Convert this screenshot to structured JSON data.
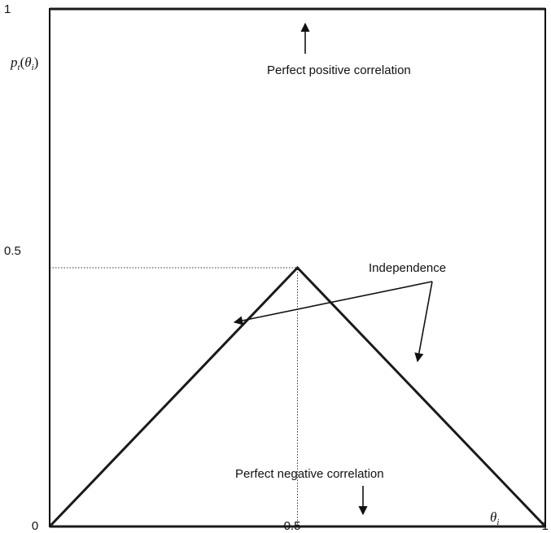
{
  "chart_data": {
    "type": "line",
    "title": "",
    "xlim": [
      0,
      1
    ],
    "ylim": [
      0,
      1
    ],
    "grid": false,
    "x_ticks": [
      {
        "value": 0,
        "label": "0"
      },
      {
        "value": 0.5,
        "label": "0.5"
      },
      {
        "value": 1,
        "label": "1"
      }
    ],
    "y_ticks": [
      {
        "value": 0.5,
        "label": "0.5"
      },
      {
        "value": 1,
        "label": "1"
      }
    ],
    "xlabel": {
      "main": "θ",
      "sub": "i"
    },
    "ylabel": {
      "p": "p",
      "p_sub": "t",
      "open": "(",
      "theta": "θ",
      "theta_sub": "i",
      "close": ")"
    },
    "series": [
      {
        "x": [
          0,
          1
        ],
        "y": [
          1,
          1
        ],
        "style": "solid-thick"
      },
      {
        "x": [
          0,
          0.5,
          1
        ],
        "y": [
          0,
          0.5,
          0
        ],
        "style": "solid-thick"
      },
      {
        "x": [
          0,
          1
        ],
        "y": [
          0,
          0
        ],
        "style": "solid-thick"
      }
    ],
    "guides": [
      {
        "x": [
          0,
          0.5
        ],
        "y": [
          0.5,
          0.5
        ],
        "style": "dotted"
      },
      {
        "x": [
          0.5,
          0.5
        ],
        "y": [
          0,
          0.5
        ],
        "style": "dotted"
      }
    ],
    "annotations": [
      {
        "text": "Perfect positive correlation"
      },
      {
        "text": "Independence"
      },
      {
        "text": "Perfect negative correlation"
      }
    ],
    "colors": {
      "line": "#1a1a1a",
      "frame": "#000000",
      "guide": "#333333"
    }
  }
}
